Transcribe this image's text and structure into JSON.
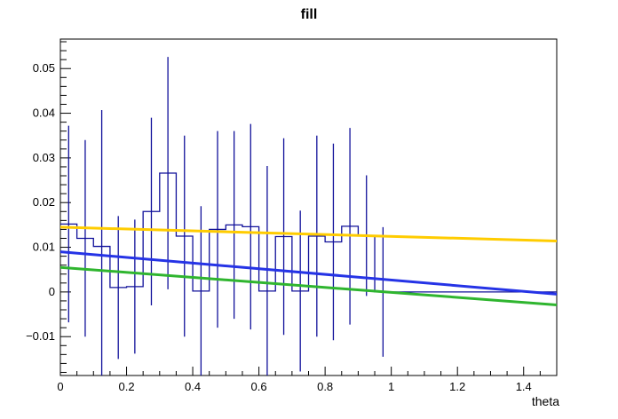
{
  "title": "fill",
  "axes": {
    "x_title": "theta",
    "x_tick_labels": [
      "0",
      "0.2",
      "0.4",
      "0.6",
      "0.8",
      "1",
      "1.2",
      "1.4"
    ],
    "y_tick_labels": [
      "−0.01",
      "0",
      "0.01",
      "0.02",
      "0.03",
      "0.04",
      "0.05"
    ]
  },
  "chart_data": {
    "type": "histogram-with-error-bars-and-fit-lines",
    "title": "fill",
    "xlabel": "theta",
    "ylabel": "",
    "xlim": [
      0,
      1.5
    ],
    "ylim": [
      -0.0187,
      0.0566
    ],
    "grid": false,
    "legend": "none",
    "x_major_ticks": [
      0,
      0.2,
      0.4,
      0.6,
      0.8,
      1.0,
      1.2,
      1.4
    ],
    "x_minor_step": 0.05,
    "y_major_ticks": [
      -0.01,
      0,
      0.01,
      0.02,
      0.03,
      0.04,
      0.05
    ],
    "y_minor_step": 0.002,
    "histogram": {
      "color": "#10109a",
      "bin_width": 0.05,
      "first_bin_x": 0.0,
      "zero_line_from": 0.95,
      "zero_line_to": 1.5,
      "bins": [
        {
          "x0": 0.0,
          "value": 0.0152,
          "err": 0.022
        },
        {
          "x0": 0.05,
          "value": 0.012,
          "err": 0.022
        },
        {
          "x0": 0.1,
          "value": 0.0102,
          "err": 0.0305
        },
        {
          "x0": 0.15,
          "value": 0.001,
          "err": 0.016
        },
        {
          "x0": 0.2,
          "value": 0.0012,
          "err": 0.015
        },
        {
          "x0": 0.25,
          "value": 0.018,
          "err": 0.021
        },
        {
          "x0": 0.3,
          "value": 0.0266,
          "err": 0.026
        },
        {
          "x0": 0.35,
          "value": 0.0125,
          "err": 0.0225
        },
        {
          "x0": 0.4,
          "value": 0.0002,
          "err": 0.019
        },
        {
          "x0": 0.45,
          "value": 0.014,
          "err": 0.022
        },
        {
          "x0": 0.5,
          "value": 0.015,
          "err": 0.021
        },
        {
          "x0": 0.55,
          "value": 0.0146,
          "err": 0.023
        },
        {
          "x0": 0.6,
          "value": 0.0002,
          "err": 0.028
        },
        {
          "x0": 0.65,
          "value": 0.0124,
          "err": 0.022
        },
        {
          "x0": 0.7,
          "value": 0.0002,
          "err": 0.018
        },
        {
          "x0": 0.75,
          "value": 0.0125,
          "err": 0.0225
        },
        {
          "x0": 0.8,
          "value": 0.0112,
          "err": 0.022
        },
        {
          "x0": 0.85,
          "value": 0.0147,
          "err": 0.022
        },
        {
          "x0": 0.9,
          "value": 0.0126,
          "err": 0.0135
        },
        {
          "x0": 0.95,
          "value": 0.0,
          "err": 0.0145
        }
      ]
    },
    "fits": [
      {
        "name": "fit-yellow",
        "color": "#ffcc00",
        "y_at_xmin": 0.0145,
        "y_at_xmax": 0.0114
      },
      {
        "name": "fit-blue",
        "color": "#2533e6",
        "y_at_xmin": 0.009,
        "y_at_xmax": -0.0005
      },
      {
        "name": "fit-green",
        "color": "#2fb52f",
        "y_at_xmin": 0.0055,
        "y_at_xmax": -0.0029
      }
    ]
  }
}
